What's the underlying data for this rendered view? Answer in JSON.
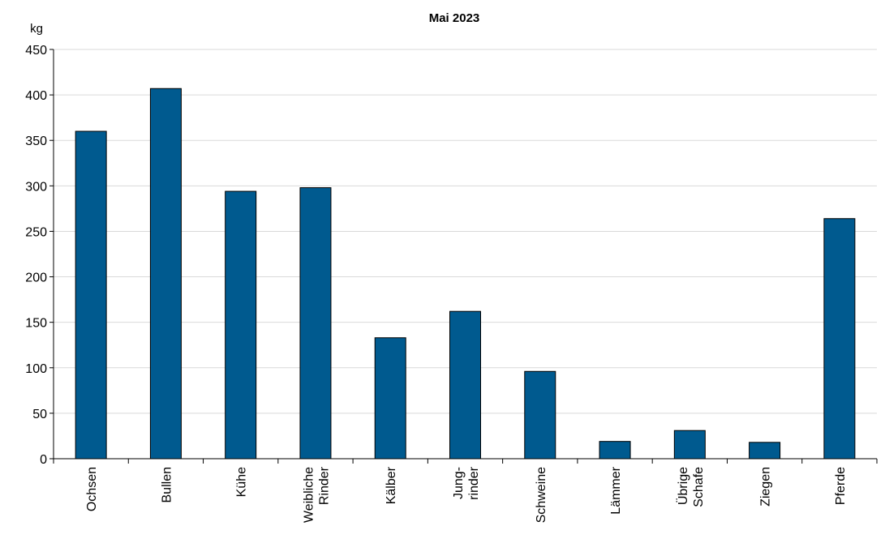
{
  "chart_data": {
    "type": "bar",
    "title": "Mai 2023",
    "unit_label": "kg",
    "xlabel": "",
    "ylabel": "",
    "ylim": [
      0,
      450
    ],
    "yticks": [
      0,
      50,
      100,
      150,
      200,
      250,
      300,
      350,
      400,
      450
    ],
    "grid": true,
    "legend": "none",
    "bar_color": "#005a8f",
    "grid_color": "#d9d9d9",
    "categories": [
      [
        "Ochsen"
      ],
      [
        "Bullen"
      ],
      [
        "Kühe"
      ],
      [
        "Weibliche",
        "Rinder"
      ],
      [
        "Kälber"
      ],
      [
        "Jung-",
        "rinder"
      ],
      [
        "Schweine"
      ],
      [
        "Lämmer"
      ],
      [
        "Übrige",
        "Schafe"
      ],
      [
        "Ziegen"
      ],
      [
        "Pferde"
      ]
    ],
    "values": [
      360,
      407,
      294,
      298,
      133,
      162,
      96,
      19,
      31,
      18,
      264
    ]
  }
}
